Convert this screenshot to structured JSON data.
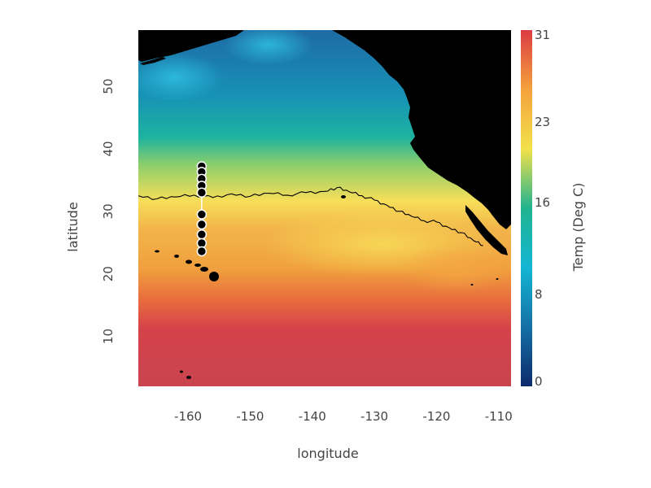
{
  "chart_data": {
    "type": "heatmap",
    "title": "",
    "xlabel": "longitude",
    "ylabel": "latitude",
    "xlim": [
      -168,
      -108
    ],
    "ylim": [
      2,
      59
    ],
    "x_ticks": [
      -160,
      -150,
      -140,
      -130,
      -120,
      -110
    ],
    "x_tick_labels": [
      "-160",
      "-150",
      "-140",
      "-130",
      "-120",
      "-110"
    ],
    "y_ticks": [
      10,
      20,
      30,
      40,
      50
    ],
    "y_tick_labels": [
      "10",
      "20",
      "30",
      "40",
      "50"
    ],
    "colorbar": {
      "label": "Temp (Deg C)",
      "range": [
        0,
        31
      ],
      "ticks": [
        0,
        8,
        16,
        23,
        31
      ],
      "tick_labels": [
        "0",
        "8",
        "16",
        "23",
        "31"
      ],
      "colors": [
        "#0d2a6b",
        "#1570a6",
        "#13b6d4",
        "#20b38f",
        "#f2e14a",
        "#f5a23c",
        "#dc3b43"
      ]
    },
    "contour_line": {
      "level_note": "",
      "points": [
        [
          -168,
          32.5
        ],
        [
          -165,
          32.0
        ],
        [
          -162,
          32.3
        ],
        [
          -159,
          32.6
        ],
        [
          -156,
          32.2
        ],
        [
          -153,
          32.8
        ],
        [
          -150,
          32.4
        ],
        [
          -147,
          32.9
        ],
        [
          -144,
          32.6
        ],
        [
          -141,
          33.0
        ],
        [
          -138,
          33.2
        ],
        [
          -136,
          33.8
        ],
        [
          -134,
          33.1
        ],
        [
          -132,
          32.5
        ],
        [
          -130,
          31.8
        ],
        [
          -128,
          31.0
        ],
        [
          -126,
          30.0
        ],
        [
          -124,
          29.2
        ],
        [
          -122,
          28.5
        ],
        [
          -120,
          28.3
        ],
        [
          -118,
          27.4
        ],
        [
          -116,
          26.6
        ],
        [
          -114,
          25.3
        ],
        [
          -112.5,
          24.5
        ]
      ]
    },
    "sample_points": {
      "lon": -157.8,
      "lat": [
        37.2,
        36.3,
        35.2,
        34.1,
        33.0,
        29.5,
        27.9,
        26.3,
        24.9,
        23.6
      ]
    },
    "land_color": "#000000"
  }
}
